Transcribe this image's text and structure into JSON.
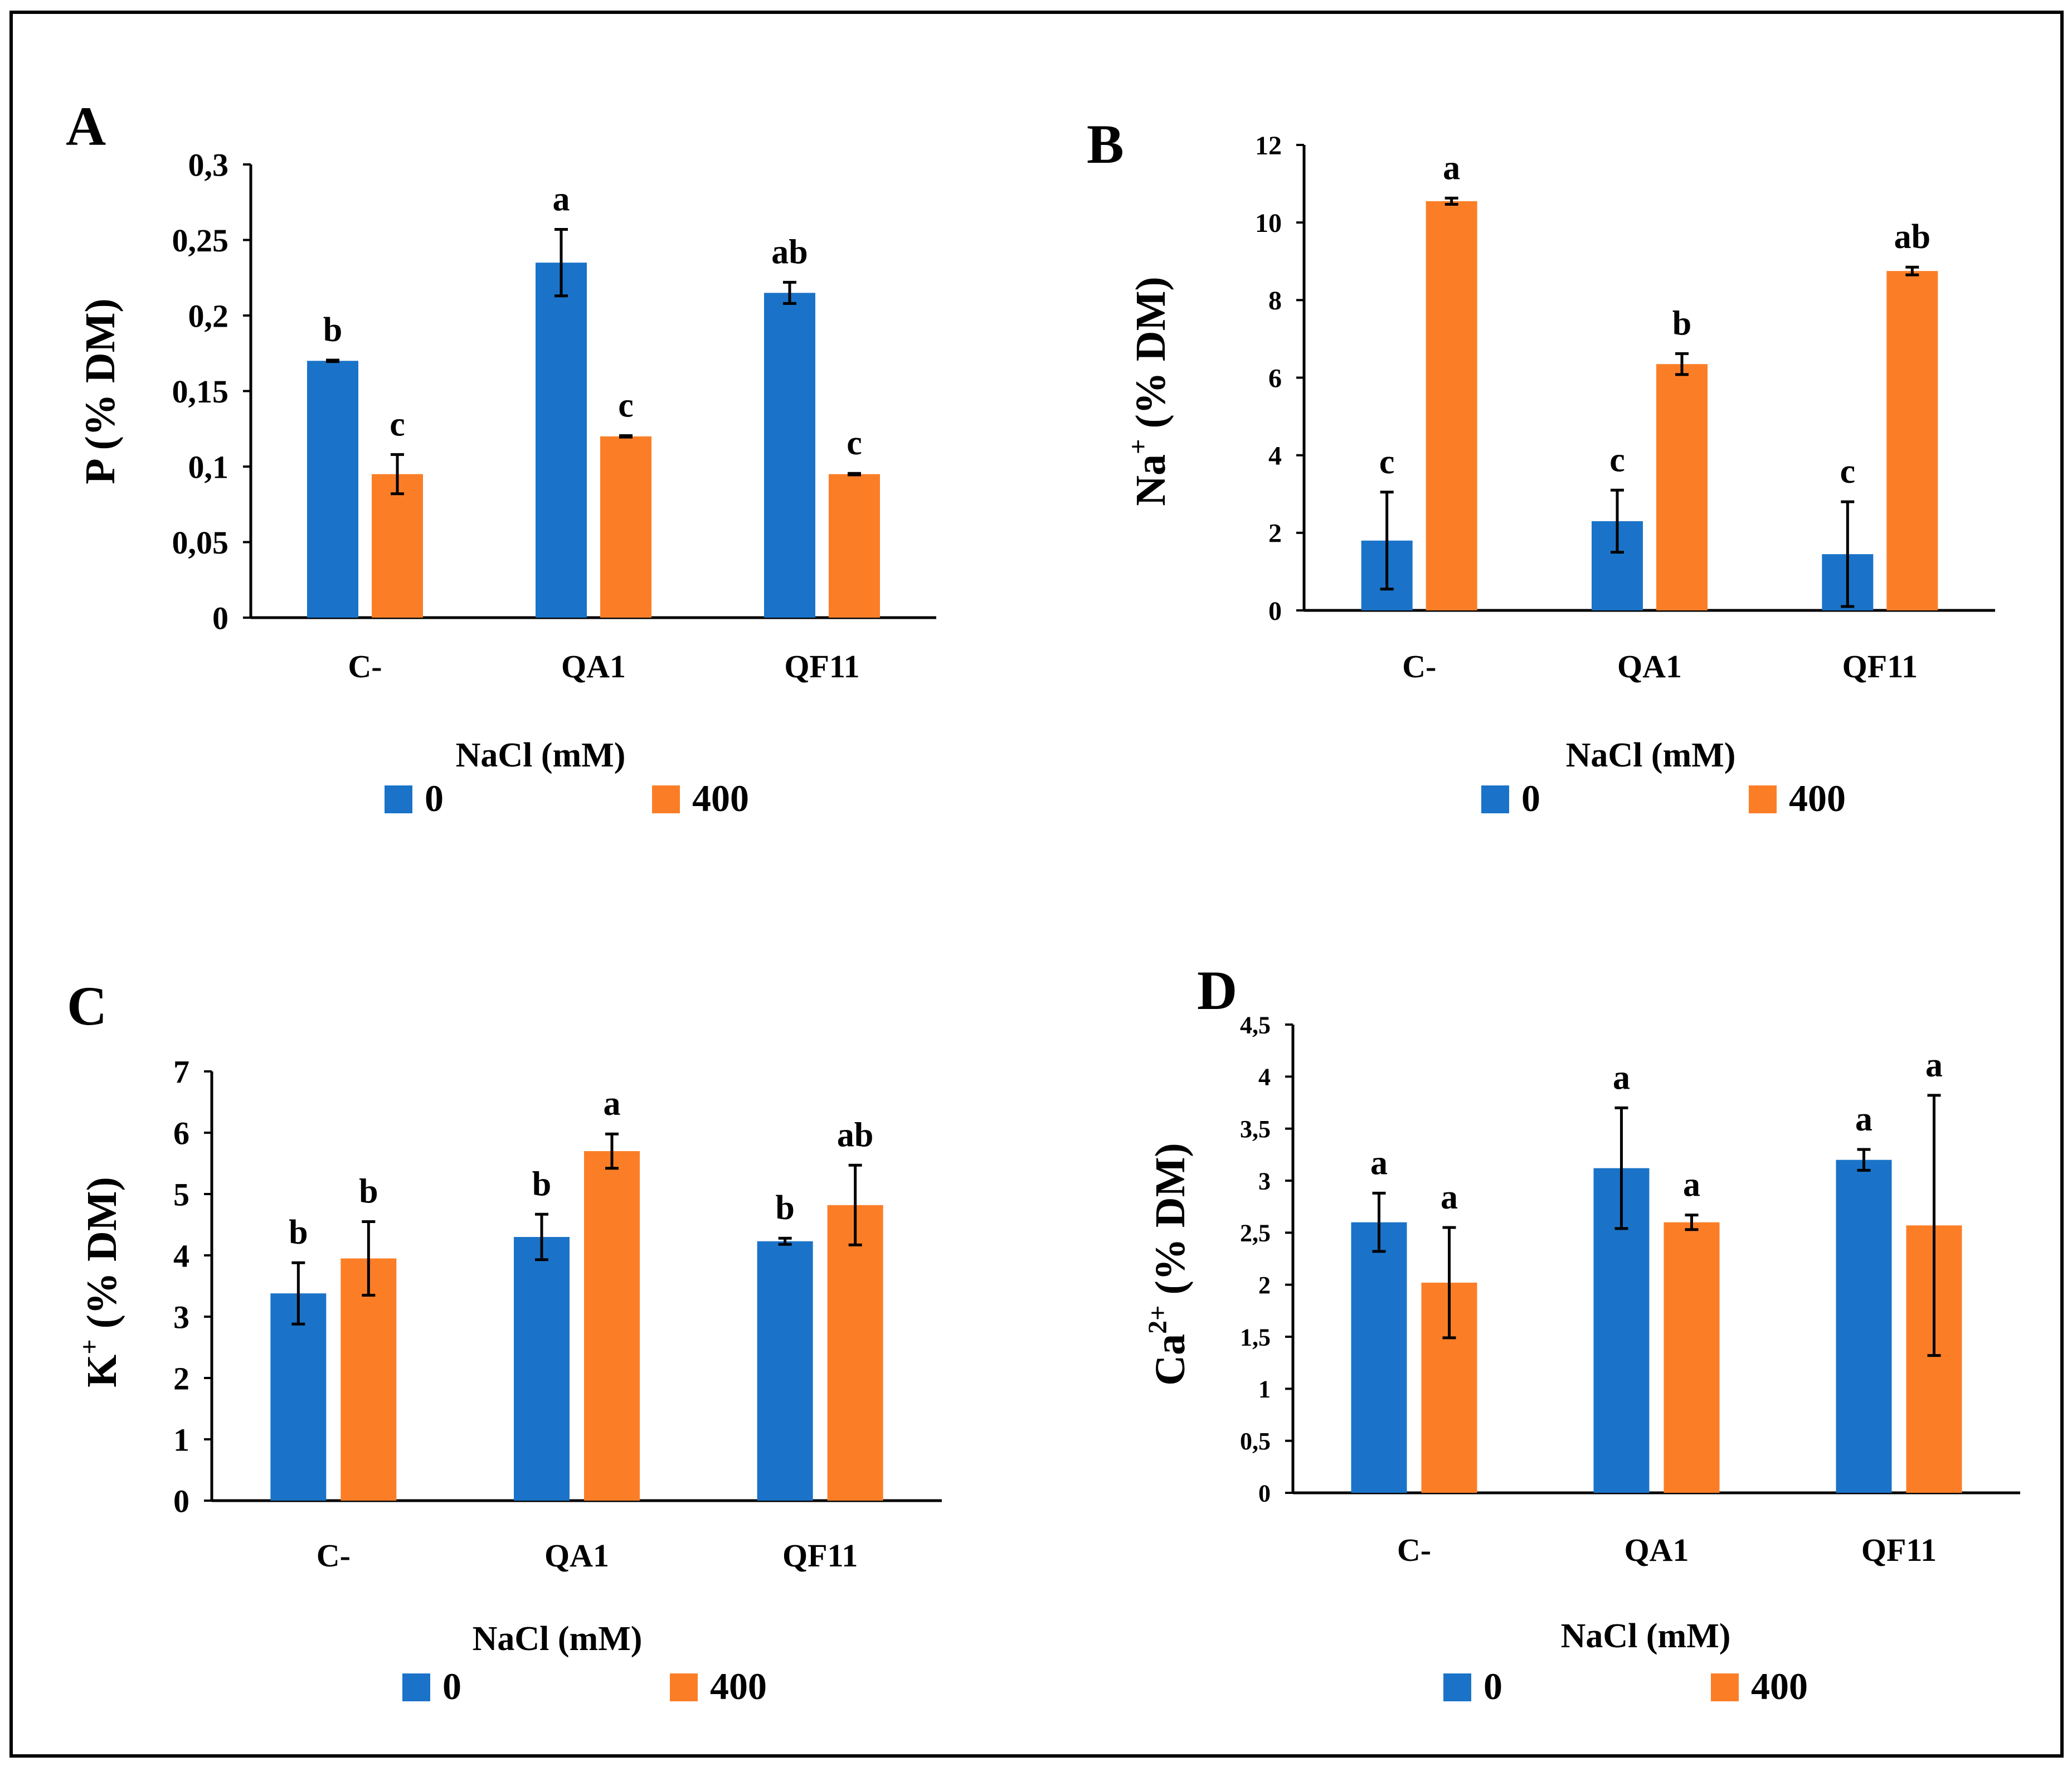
{
  "colors": {
    "series0": "#1a73c8",
    "series400": "#fb7e27",
    "axis": "#000000"
  },
  "legend_title": "NaCl (mM)",
  "chart_data": [
    {
      "panel": "A",
      "type": "bar",
      "ylabel": "P  (% DM)",
      "ylabel_main": "P  (% DM)",
      "ylabel_sup": "",
      "xlabel": "NaCl (mM)",
      "categories": [
        "C-",
        "QA1",
        "QF11"
      ],
      "ylim": [
        0,
        0.3
      ],
      "yticks": [
        0,
        0.05,
        0.1,
        0.15,
        0.2,
        0.25,
        0.3
      ],
      "ytick_labels": [
        "0",
        "0,05",
        "0,1",
        "0,15",
        "0,2",
        "0,25",
        "0,3"
      ],
      "series": [
        {
          "name": "0",
          "values": [
            0.17,
            0.235,
            0.215
          ],
          "errors": [
            0.0005,
            0.022,
            0.007
          ],
          "letters": [
            "b",
            "a",
            "ab"
          ]
        },
        {
          "name": "400",
          "values": [
            0.095,
            0.12,
            0.095
          ],
          "errors": [
            0.013,
            0.0005,
            0.0005
          ],
          "letters": [
            "c",
            "c",
            "c"
          ]
        }
      ]
    },
    {
      "panel": "B",
      "type": "bar",
      "ylabel": "Na+ (% DM)",
      "ylabel_main": "Na",
      "ylabel_sup": "+",
      "xlabel": "NaCl (mM)",
      "categories": [
        "C-",
        "QA1",
        "QF11"
      ],
      "ylim": [
        0,
        12
      ],
      "yticks": [
        0,
        2,
        4,
        6,
        8,
        10,
        12
      ],
      "ytick_labels": [
        "0",
        "2",
        "4",
        "6",
        "8",
        "10",
        "12"
      ],
      "series": [
        {
          "name": "0",
          "values": [
            1.8,
            2.3,
            1.45
          ],
          "errors": [
            1.25,
            0.8,
            1.35
          ],
          "letters": [
            "c",
            "c",
            "c"
          ]
        },
        {
          "name": "400",
          "values": [
            10.55,
            6.35,
            8.75
          ],
          "errors": [
            0.08,
            0.27,
            0.1
          ],
          "letters": [
            "a",
            "b",
            "ab"
          ]
        }
      ]
    },
    {
      "panel": "C",
      "type": "bar",
      "ylabel": "K+ (% DM)",
      "ylabel_main": "K",
      "ylabel_sup": "+",
      "xlabel": "NaCl (mM)",
      "categories": [
        "C-",
        "QA1",
        "QF11"
      ],
      "ylim": [
        0,
        7
      ],
      "yticks": [
        0,
        1,
        2,
        3,
        4,
        5,
        6,
        7
      ],
      "ytick_labels": [
        "0",
        "1",
        "2",
        "3",
        "4",
        "5",
        "6",
        "7"
      ],
      "series": [
        {
          "name": "0",
          "values": [
            3.38,
            4.3,
            4.23
          ],
          "errors": [
            0.5,
            0.37,
            0.05
          ],
          "letters": [
            "b",
            "b",
            "b"
          ]
        },
        {
          "name": "400",
          "values": [
            3.95,
            5.7,
            4.82
          ],
          "errors": [
            0.6,
            0.28,
            0.65
          ],
          "letters": [
            "b",
            "a",
            "ab"
          ]
        }
      ]
    },
    {
      "panel": "D",
      "type": "bar",
      "ylabel": "Ca2+ (% DM)",
      "ylabel_main": "Ca",
      "ylabel_sup": "2+",
      "xlabel": "NaCl (mM)",
      "categories": [
        "C-",
        "QA1",
        "QF11"
      ],
      "ylim": [
        0,
        4.5
      ],
      "yticks": [
        0,
        0.5,
        1,
        1.5,
        2,
        2.5,
        3,
        3.5,
        4,
        4.5
      ],
      "ytick_labels": [
        "0",
        "0,5",
        "1",
        "1,5",
        "2",
        "2,5",
        "3",
        "3,5",
        "4",
        "4,5"
      ],
      "series": [
        {
          "name": "0",
          "values": [
            2.6,
            3.12,
            3.2
          ],
          "errors": [
            0.28,
            0.58,
            0.1
          ],
          "letters": [
            "a",
            "a",
            "a"
          ]
        },
        {
          "name": "400",
          "values": [
            2.02,
            2.6,
            2.57
          ],
          "errors": [
            0.53,
            0.07,
            1.25
          ],
          "letters": [
            "a",
            "a",
            "a"
          ]
        }
      ]
    }
  ]
}
